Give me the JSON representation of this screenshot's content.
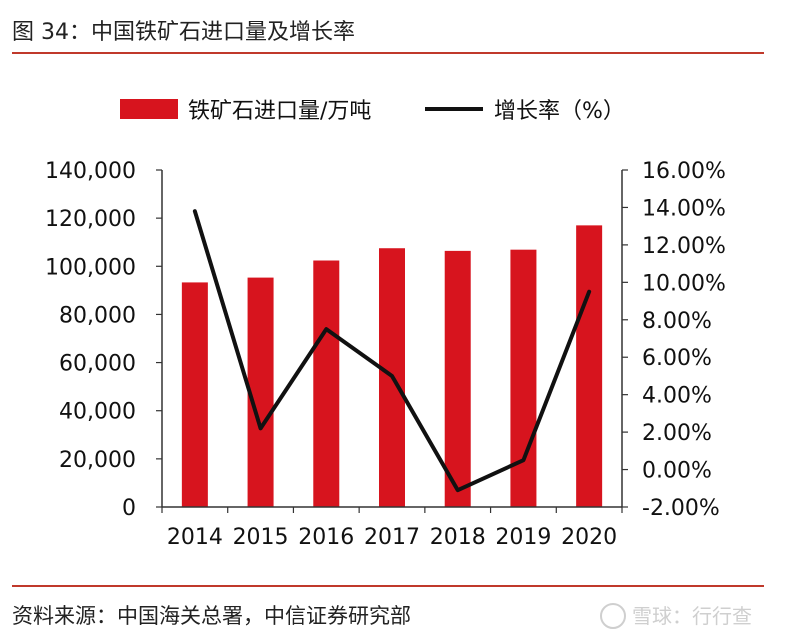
{
  "figure": {
    "title": "图 34：中国铁矿石进口量及增长率",
    "source": "资料来源：中国海关总署，中信证券研究部",
    "watermark": "雪球：行行查"
  },
  "colors": {
    "bar": "#d7141e",
    "line": "#111111",
    "rule": "#c0392b",
    "axis": "#333333"
  },
  "chart_data": {
    "type": "bar",
    "categories": [
      "2014",
      "2015",
      "2016",
      "2017",
      "2018",
      "2019",
      "2020"
    ],
    "series": [
      {
        "name": "铁矿石进口量/万吨",
        "type": "bar",
        "axis": "left",
        "values": [
          93300,
          95300,
          102400,
          107500,
          106400,
          106900,
          117000
        ]
      },
      {
        "name": "增长率（%）",
        "type": "line",
        "axis": "right",
        "values": [
          13.8,
          2.2,
          7.5,
          5.0,
          -1.1,
          0.5,
          9.5
        ]
      }
    ],
    "y_left": {
      "min": 0,
      "max": 140000,
      "step": 20000,
      "tick_labels": [
        "0",
        "20,000",
        "40,000",
        "60,000",
        "80,000",
        "100,000",
        "120,000",
        "140,000"
      ]
    },
    "y_right": {
      "min": -2,
      "max": 16,
      "step": 2,
      "tick_labels": [
        "-2.00%",
        "0.00%",
        "2.00%",
        "4.00%",
        "6.00%",
        "8.00%",
        "10.00%",
        "12.00%",
        "14.00%",
        "16.00%"
      ]
    },
    "legend_position": "top-center",
    "grid": false
  }
}
